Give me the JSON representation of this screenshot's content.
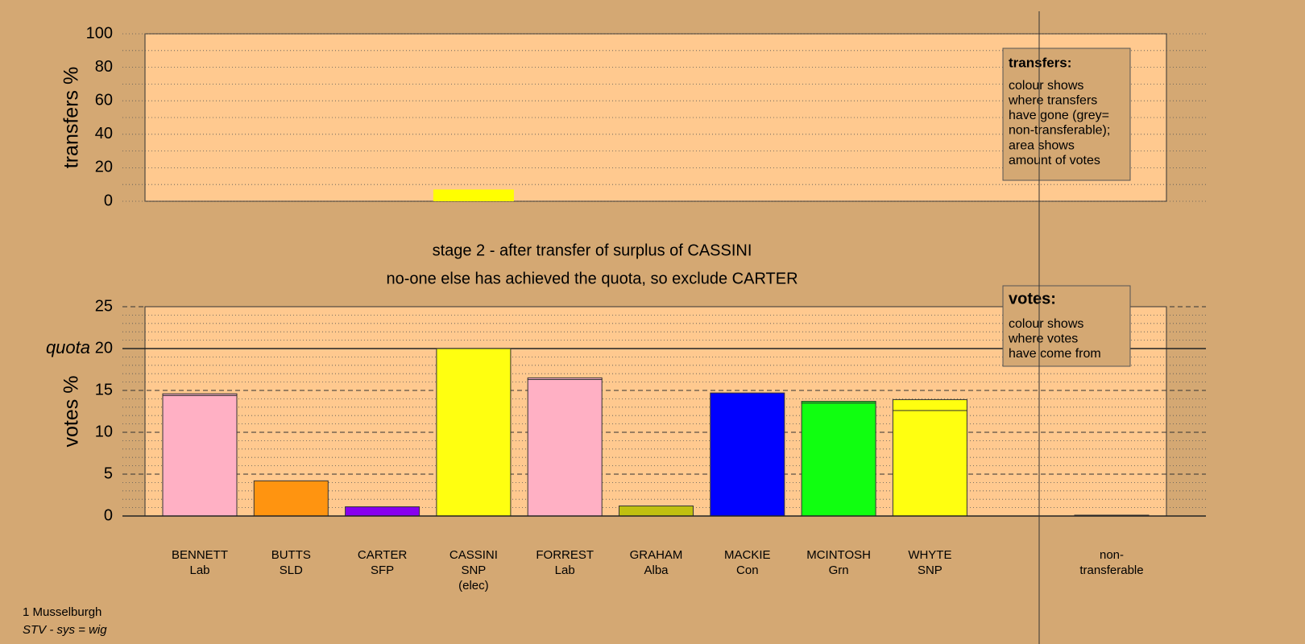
{
  "chart_data": [
    {
      "type": "bar",
      "ylabel": "transfers %",
      "ylim": [
        0,
        100
      ],
      "yticks": [
        0,
        20,
        40,
        60,
        80,
        100
      ],
      "minor_yticks": [
        10,
        30,
        50,
        70,
        90
      ],
      "values": [
        0,
        0,
        0,
        7,
        0,
        0,
        0,
        0,
        0,
        0
      ],
      "color": "#ffff00",
      "note": {
        "title": "transfers:",
        "paragraphs": [
          [
            "colour shows",
            "where transfers",
            "have gone (grey=",
            "non-transferable);"
          ],
          [
            "area shows",
            "amount of votes"
          ]
        ]
      }
    },
    {
      "type": "stacked_bar",
      "ylabel": "votes %",
      "ylim": [
        0,
        25
      ],
      "yticks": [
        0,
        5,
        10,
        15,
        20,
        25
      ],
      "minor_yticks": [
        1,
        2,
        3,
        4,
        6,
        7,
        8,
        9,
        11,
        12,
        13,
        14,
        16,
        17,
        18,
        19,
        21,
        22,
        23,
        24
      ],
      "quota": 20,
      "quota_label": "quota",
      "categories": [
        [
          "BENNETT",
          "Lab"
        ],
        [
          "BUTTS",
          "SLD"
        ],
        [
          "CARTER",
          "SFP"
        ],
        [
          "CASSINI",
          "SNP",
          "(elec)"
        ],
        [
          "FORREST",
          "Lab"
        ],
        [
          "GRAHAM",
          "Alba"
        ],
        [
          "MACKIE",
          "Con"
        ],
        [
          "MCINTOSH",
          "Grn"
        ],
        [
          "WHYTE",
          "SNP"
        ],
        [
          "non-",
          "transferable"
        ]
      ],
      "series": [
        {
          "values": [
            14.4,
            4.2,
            1.1,
            20,
            16.3,
            1.2,
            14.7,
            13.5,
            12.6,
            0
          ],
          "colors": [
            "#ffb0c4",
            "#ff9410",
            "#8800ee",
            "#ffff10",
            "#ffb0c4",
            "#c0c010",
            "#0000ff",
            "#10ff10",
            "#ffff10",
            "#999999"
          ]
        },
        {
          "values": [
            0.2,
            0,
            0,
            0,
            0.2,
            0,
            0,
            0.2,
            1.3,
            0.1
          ],
          "colors": [
            "#ffb0c4",
            "#ff9410",
            "#8800ee",
            "#ffff10",
            "#ffb0c4",
            "#c0c010",
            "#0000ff",
            "#10ff10",
            "#ffff10",
            "#999999"
          ]
        }
      ],
      "note": {
        "title": "votes:",
        "paragraphs": [
          [
            "colour shows",
            "where votes",
            "have come from"
          ]
        ]
      }
    }
  ],
  "stage": {
    "title": "stage 2 - after transfer of surplus of CASSINI",
    "subtitle": "no-one else has achieved the quota, so exclude CARTER"
  },
  "footer": {
    "place": "1 Musselburgh",
    "system": "STV - sys = wig"
  }
}
